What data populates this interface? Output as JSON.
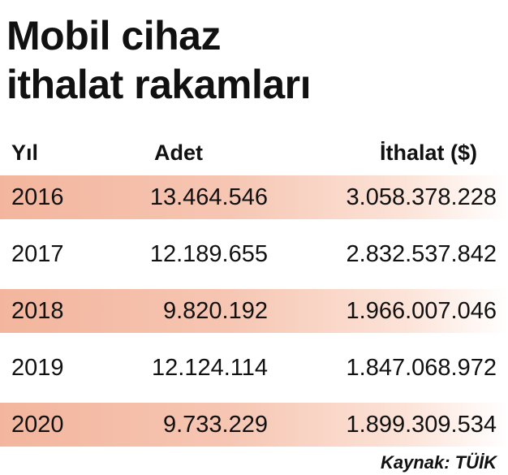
{
  "chart_data": {
    "type": "table",
    "title": "Mobil cihaz ithalat rakamları",
    "title_lines": [
      "Mobil cihaz",
      "ithalat rakamları"
    ],
    "columns": [
      "Yıl",
      "Adet",
      "İthalat ($)"
    ],
    "rows": [
      {
        "year": "2016",
        "adet": "13.464.546",
        "ithalat": "3.058.378.228"
      },
      {
        "year": "2017",
        "adet": "12.189.655",
        "ithalat": "2.832.537.842"
      },
      {
        "year": "2018",
        "adet": "9.820.192",
        "ithalat": "1.966.007.046"
      },
      {
        "year": "2019",
        "adet": "12.124.114",
        "ithalat": "1.847.068.972"
      },
      {
        "year": "2020",
        "adet": "9.733.229",
        "ithalat": "1.899.309.534"
      }
    ],
    "source": "Kaynak: TÜİK",
    "shaded_rows": [
      0,
      2,
      4
    ],
    "accent_color": "#f3b59d"
  }
}
